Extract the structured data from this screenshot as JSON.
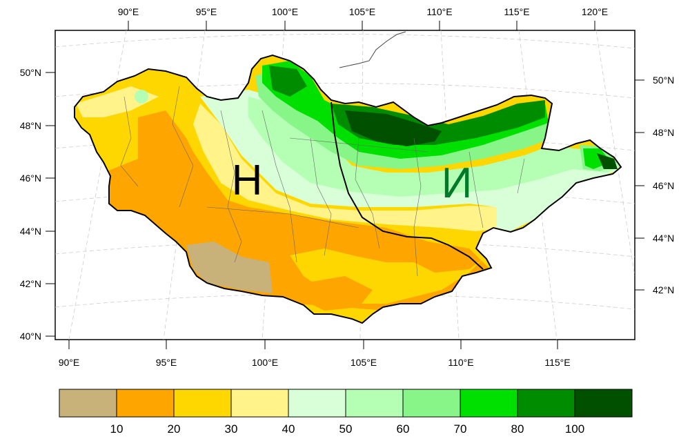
{
  "map": {
    "top_lon_labels": [
      "90°E",
      "95°E",
      "100°E",
      "105°E",
      "110°E",
      "115°E",
      "120°E"
    ],
    "bottom_lon_labels": [
      "90°E",
      "95°E",
      "100°E",
      "105°E",
      "110°E",
      "115°E"
    ],
    "left_lat_labels": [
      "50°N",
      "48°N",
      "46°N",
      "44°N",
      "42°N",
      "40°N"
    ],
    "right_lat_labels": [
      "50°N",
      "48°N",
      "46°N",
      "44°N",
      "42°N"
    ],
    "region_labels": {
      "west": "H",
      "east": "И"
    },
    "region_label_colors": {
      "west": "#000000",
      "east": "#007a2a"
    }
  },
  "colorbar": {
    "ticks": [
      "10",
      "20",
      "30",
      "40",
      "50",
      "60",
      "70",
      "80",
      "100"
    ],
    "colors": [
      "#c8b27a",
      "#ffa500",
      "#ffd700",
      "#fff38a",
      "#d9ffd9",
      "#b4ffb4",
      "#87f587",
      "#00e000",
      "#008c00",
      "#005000"
    ]
  }
}
